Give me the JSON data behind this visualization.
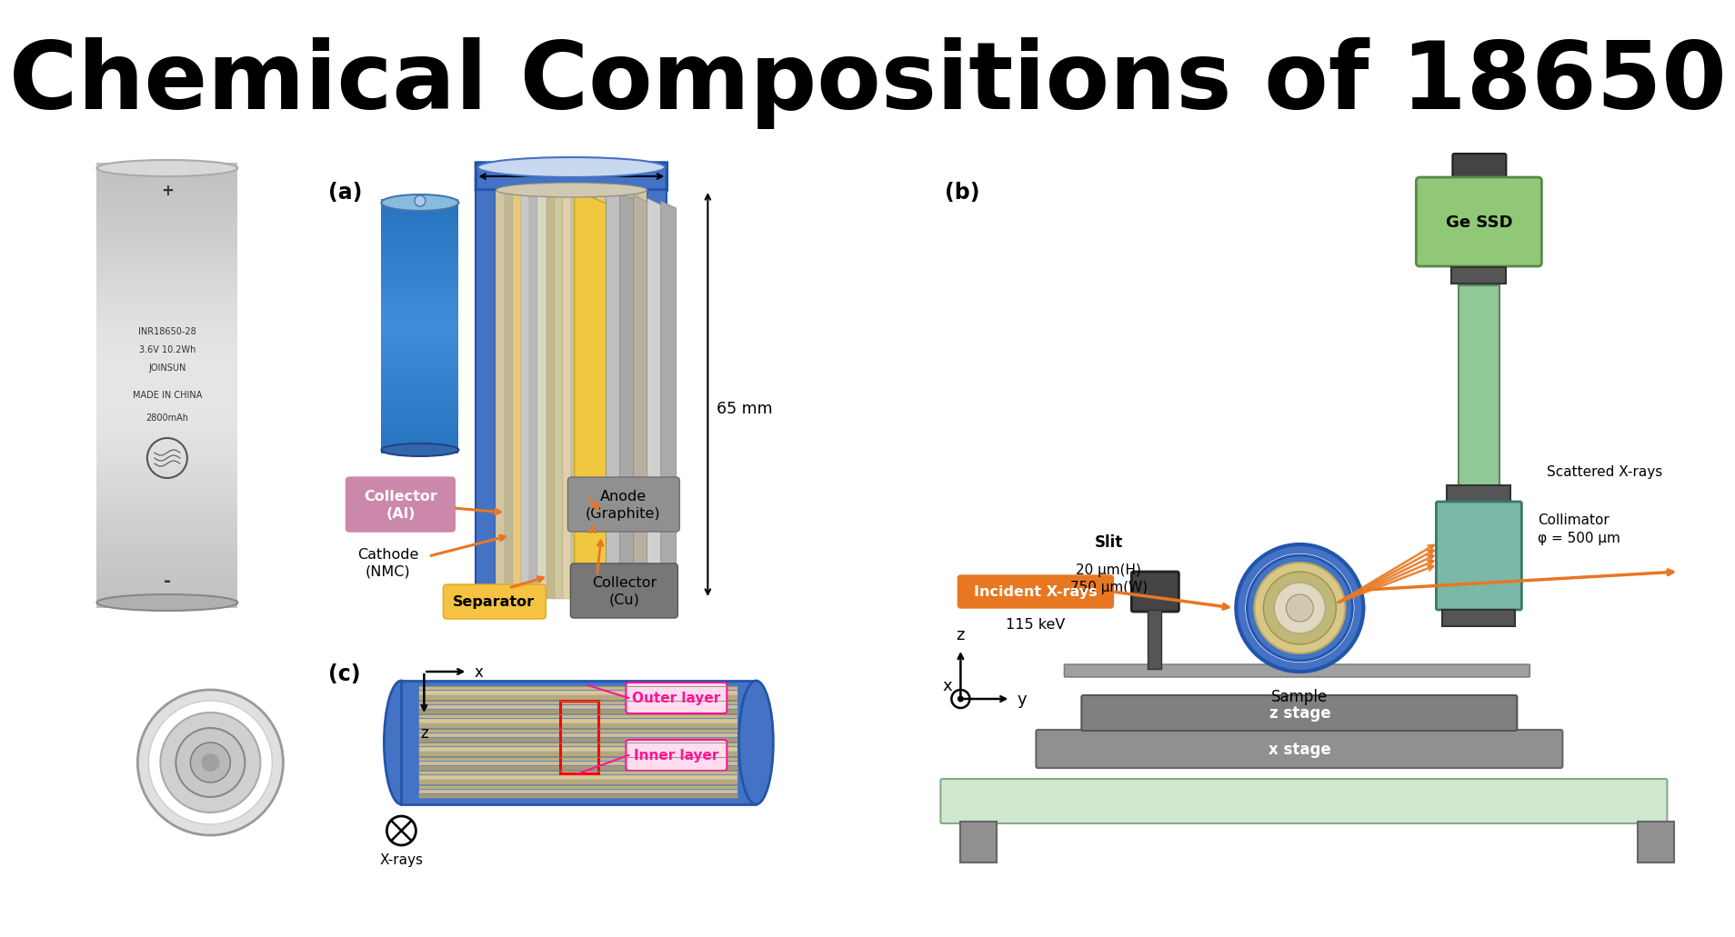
{
  "title": "Chemical Compositions of 18650",
  "title_fontsize": 74,
  "title_fontweight": "bold",
  "title_color": "#000000",
  "bg": "#ffffff",
  "label_a": "(a)",
  "label_b": "(b)",
  "label_c": "(c)",
  "orange": "#E87722",
  "blue_battery": "#4472C4",
  "blue_dark": "#2B5BA8",
  "collector_al_bg": "#C490B4",
  "separator_bg": "#F5C242",
  "anode_bg": "#909090",
  "collector_cu_bg": "#808080",
  "green_ssd": "#90C878",
  "green_teal": "#C8E0D0",
  "gray_stage": "#909090",
  "gray_dark": "#555555",
  "pink_label": "#FF1493"
}
